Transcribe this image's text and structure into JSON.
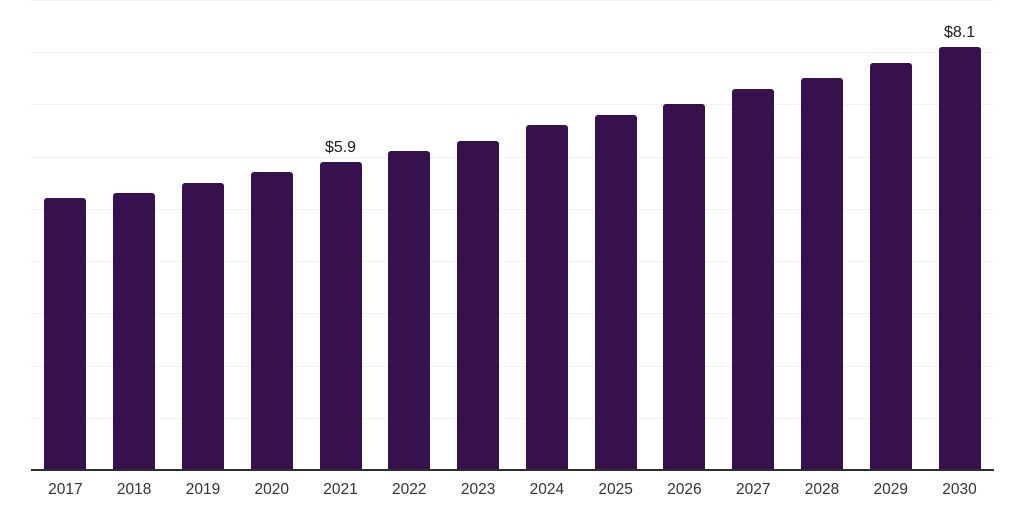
{
  "chart_data": {
    "type": "bar",
    "title": "",
    "xlabel": "",
    "ylabel": "",
    "categories": [
      "2017",
      "2018",
      "2019",
      "2020",
      "2021",
      "2022",
      "2023",
      "2024",
      "2025",
      "2026",
      "2027",
      "2028",
      "2029",
      "2030"
    ],
    "values": [
      5.2,
      5.3,
      5.5,
      5.7,
      5.9,
      6.1,
      6.3,
      6.6,
      6.8,
      7.0,
      7.3,
      7.5,
      7.8,
      8.1
    ],
    "data_labels": [
      {
        "category": "2021",
        "text": "$5.9"
      },
      {
        "category": "2030",
        "text": "$8.1"
      }
    ],
    "ylim": [
      0,
      9
    ],
    "y_gridline_step": 1,
    "grid": "horizontal",
    "legend": "none",
    "y_axis_tick_labels": "none",
    "colors": {
      "bar": "#36114E",
      "gridline": "#f2f2f2",
      "axis_line": "#2e2e2e",
      "tick_label": "#333333",
      "data_label": "#1a1a1a",
      "background": "#ffffff"
    }
  }
}
